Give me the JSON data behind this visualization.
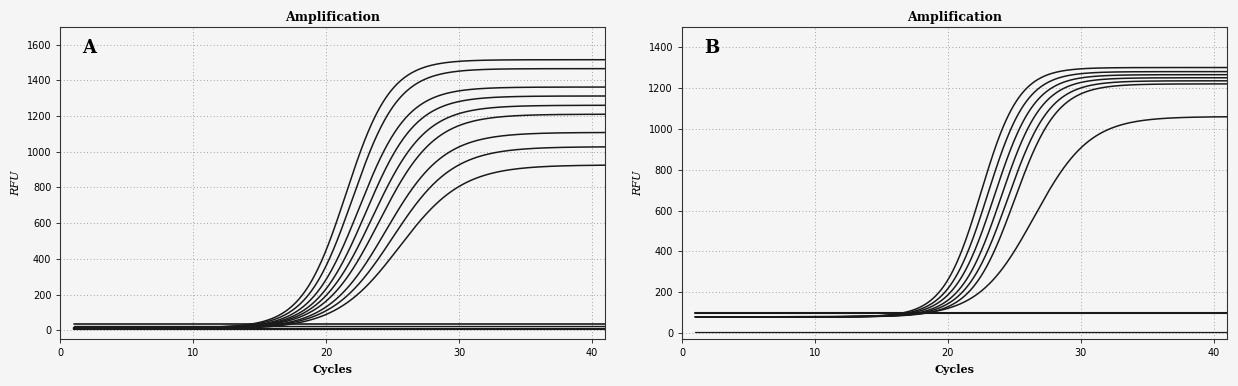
{
  "title": "Amplification",
  "xlabel": "Cycles",
  "ylabel": "RFU",
  "label_A": "A",
  "label_B": "B",
  "x_min": 1,
  "x_max": 41,
  "x_ticks": [
    0,
    10,
    20,
    30,
    40
  ],
  "chart_A": {
    "ylim": [
      -50,
      1700
    ],
    "yticks": [
      0,
      200,
      400,
      600,
      800,
      1000,
      1200,
      1400,
      1600
    ],
    "sigmoid_curves": [
      {
        "L": 1500,
        "k": 0.6,
        "x0": 21.5,
        "baseline": 15
      },
      {
        "L": 1450,
        "k": 0.58,
        "x0": 22.0,
        "baseline": 15
      },
      {
        "L": 1350,
        "k": 0.55,
        "x0": 22.5,
        "baseline": 12
      },
      {
        "L": 1300,
        "k": 0.53,
        "x0": 23.0,
        "baseline": 12
      },
      {
        "L": 1250,
        "k": 0.5,
        "x0": 23.5,
        "baseline": 10
      },
      {
        "L": 1200,
        "k": 0.48,
        "x0": 24.0,
        "baseline": 10
      },
      {
        "L": 1100,
        "k": 0.46,
        "x0": 24.5,
        "baseline": 8
      },
      {
        "L": 1020,
        "k": 0.44,
        "x0": 25.0,
        "baseline": 8
      },
      {
        "L": 920,
        "k": 0.42,
        "x0": 25.5,
        "baseline": 6
      }
    ],
    "flat_curves": [
      {
        "level": 35,
        "lw": 1.2
      },
      {
        "level": 22,
        "lw": 1.0
      },
      {
        "level": 12,
        "lw": 0.9
      },
      {
        "level": 5,
        "lw": 0.8
      }
    ]
  },
  "chart_B": {
    "ylim": [
      -30,
      1500
    ],
    "yticks": [
      0,
      200,
      400,
      600,
      800,
      1000,
      1200,
      1400
    ],
    "sigmoid_curves": [
      {
        "L": 1220,
        "k": 0.7,
        "x0": 22.5,
        "baseline": 80
      },
      {
        "L": 1200,
        "k": 0.68,
        "x0": 23.0,
        "baseline": 80
      },
      {
        "L": 1185,
        "k": 0.66,
        "x0": 23.5,
        "baseline": 80
      },
      {
        "L": 1170,
        "k": 0.65,
        "x0": 24.0,
        "baseline": 80
      },
      {
        "L": 1155,
        "k": 0.63,
        "x0": 24.5,
        "baseline": 80
      },
      {
        "L": 1140,
        "k": 0.62,
        "x0": 25.0,
        "baseline": 80
      },
      {
        "L": 980,
        "k": 0.48,
        "x0": 26.5,
        "baseline": 80
      }
    ],
    "flat_curves": [
      {
        "level": 100,
        "lw": 1.5
      },
      {
        "level": 5,
        "lw": 0.9
      }
    ]
  },
  "line_color": "#1a1a1a",
  "line_width": 1.1,
  "bg_color": "#f5f5f5",
  "grid_color": "#888888",
  "title_fontsize": 9,
  "label_fontsize": 7,
  "axis_label_fontsize": 8
}
